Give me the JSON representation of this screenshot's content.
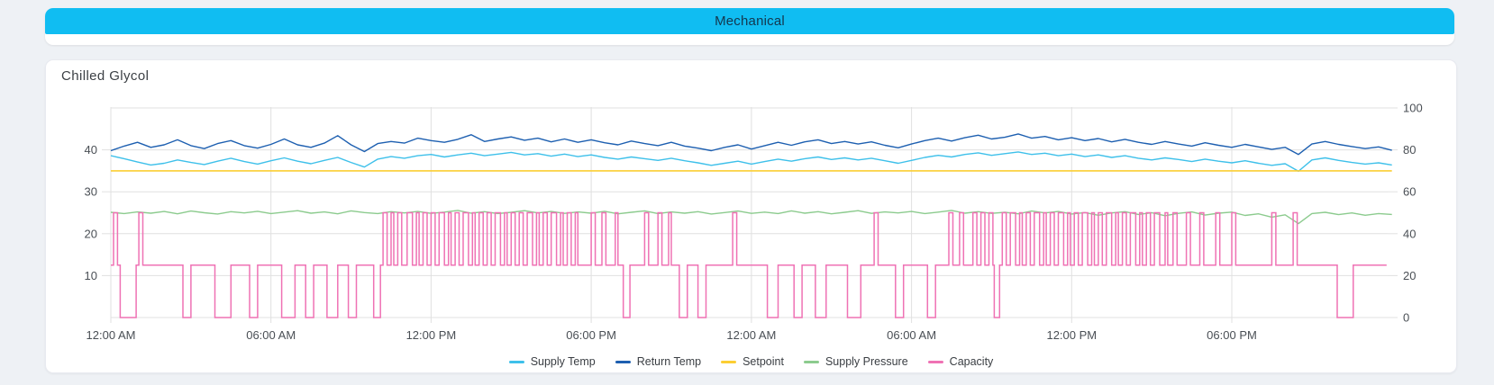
{
  "header": {
    "title": "Mechanical",
    "background": "#10bdf2",
    "text_color": "#14374e"
  },
  "panel": {
    "title": "Chilled Glycol"
  },
  "colors": {
    "grid": "#e0e0e0",
    "axis_text": "#4a4f55",
    "supply_temp": "#3ec0ea",
    "return_temp": "#1d5fb0",
    "setpoint": "#fcce33",
    "supply_pressure": "#8ccb8e",
    "capacity": "#ef72b4"
  },
  "chart_data": {
    "type": "line",
    "title": "Chilled Glycol",
    "xlabel": "",
    "ylabel": "",
    "time_span_hours": 48,
    "dt_hours": 0.5,
    "grid": true,
    "legend_position": "bottom-center",
    "x_ticks": [
      {
        "t": 0,
        "label": "12:00 AM"
      },
      {
        "t": 6,
        "label": "06:00 AM"
      },
      {
        "t": 12,
        "label": "12:00 PM"
      },
      {
        "t": 18,
        "label": "06:00 PM"
      },
      {
        "t": 24,
        "label": "12:00 AM"
      },
      {
        "t": 30,
        "label": "06:00 AM"
      },
      {
        "t": 36,
        "label": "12:00 PM"
      },
      {
        "t": 42,
        "label": "06:00 PM"
      }
    ],
    "left_axis": {
      "ticks": [
        10,
        20,
        30,
        40
      ],
      "range": [
        0,
        50.2
      ]
    },
    "right_axis": {
      "ticks": [
        0,
        20,
        40,
        60,
        80,
        100
      ],
      "range": [
        0,
        100.4
      ]
    },
    "series": [
      {
        "name": "Supply Temp",
        "color": "#3ec0ea",
        "axis": "left",
        "kind": "values",
        "values": [
          38.6,
          37.9,
          37.1,
          36.4,
          36.8,
          37.6,
          37.0,
          36.5,
          37.3,
          38.0,
          37.2,
          36.6,
          37.4,
          38.1,
          37.3,
          36.7,
          37.5,
          38.2,
          37.0,
          35.9,
          37.8,
          38.4,
          38.0,
          38.6,
          38.9,
          38.3,
          38.8,
          39.2,
          38.6,
          39.0,
          39.4,
          38.8,
          39.1,
          38.5,
          39.0,
          38.4,
          38.8,
          38.2,
          37.8,
          38.3,
          37.9,
          37.5,
          38.0,
          37.4,
          36.9,
          36.3,
          36.8,
          37.3,
          36.6,
          37.2,
          37.8,
          37.3,
          37.9,
          38.3,
          37.7,
          38.1,
          37.6,
          38.0,
          37.4,
          36.8,
          37.5,
          38.2,
          38.7,
          38.3,
          38.9,
          39.3,
          38.7,
          39.1,
          39.5,
          38.9,
          39.2,
          38.6,
          39.0,
          38.4,
          38.8,
          38.2,
          38.6,
          38.0,
          37.6,
          38.1,
          37.7,
          37.2,
          37.8,
          37.3,
          36.9,
          37.4,
          36.8,
          36.3,
          36.7,
          34.9,
          37.6,
          38.1,
          37.5,
          37.0,
          36.6,
          36.9,
          36.4
        ]
      },
      {
        "name": "Return Temp",
        "color": "#1d5fb0",
        "axis": "left",
        "kind": "values",
        "values": [
          39.8,
          40.9,
          41.8,
          40.6,
          41.2,
          42.4,
          41.0,
          40.3,
          41.5,
          42.2,
          41.0,
          40.4,
          41.3,
          42.6,
          41.2,
          40.6,
          41.6,
          43.4,
          41.2,
          39.6,
          41.5,
          42.0,
          41.6,
          42.8,
          42.2,
          41.8,
          42.5,
          43.6,
          42.0,
          42.6,
          43.1,
          42.3,
          42.8,
          41.9,
          42.6,
          41.8,
          42.4,
          41.7,
          41.2,
          42.1,
          41.5,
          41.0,
          41.8,
          40.9,
          40.4,
          39.8,
          40.6,
          41.2,
          40.2,
          41.0,
          41.8,
          41.1,
          41.9,
          42.4,
          41.5,
          42.0,
          41.4,
          41.9,
          41.1,
          40.5,
          41.4,
          42.2,
          42.8,
          42.1,
          42.9,
          43.5,
          42.6,
          43.0,
          43.8,
          42.8,
          43.2,
          42.4,
          42.9,
          42.2,
          42.7,
          41.9,
          42.5,
          41.8,
          41.3,
          42.0,
          41.4,
          40.9,
          41.7,
          41.1,
          40.6,
          41.3,
          40.7,
          40.1,
          40.6,
          38.9,
          41.4,
          42.0,
          41.3,
          40.8,
          40.3,
          40.7,
          39.9
        ]
      },
      {
        "name": "Setpoint",
        "color": "#fcce33",
        "axis": "left",
        "kind": "constant",
        "constant": 35
      },
      {
        "name": "Supply Pressure",
        "color": "#8ccb8e",
        "axis": "right",
        "kind": "values",
        "values": [
          50.2,
          49.6,
          50.4,
          49.8,
          50.6,
          49.5,
          50.8,
          50.0,
          49.4,
          50.5,
          49.9,
          50.7,
          49.6,
          50.3,
          51.0,
          49.8,
          50.4,
          49.5,
          50.9,
          50.1,
          49.6,
          50.5,
          49.9,
          50.6,
          49.7,
          50.3,
          51.1,
          49.8,
          50.5,
          49.6,
          50.2,
          51.0,
          49.9,
          50.6,
          49.7,
          50.4,
          49.8,
          50.7,
          49.5,
          50.2,
          50.9,
          49.6,
          50.4,
          49.8,
          50.5,
          49.4,
          50.1,
          50.8,
          49.7,
          50.3,
          49.6,
          50.9,
          49.8,
          50.5,
          49.5,
          50.2,
          51.0,
          49.7,
          50.4,
          49.9,
          50.6,
          49.6,
          50.3,
          51.1,
          49.8,
          50.5,
          49.7,
          50.2,
          49.5,
          50.8,
          49.9,
          50.6,
          49.4,
          50.1,
          48.8,
          49.9,
          50.5,
          49.2,
          50.0,
          48.6,
          49.7,
          50.4,
          48.9,
          49.8,
          50.3,
          48.7,
          49.5,
          47.9,
          49.0,
          44.8,
          49.6,
          50.2,
          49.1,
          49.9,
          48.8,
          49.6,
          49.2
        ]
      },
      {
        "name": "Capacity",
        "color": "#ef72b4",
        "axis": "right",
        "kind": "step",
        "baseline": 25,
        "t_end": 47.8,
        "excursions": [
          [
            0.1,
            0.25,
            50
          ],
          [
            0.35,
            0.95,
            0
          ],
          [
            1.05,
            1.2,
            50
          ],
          [
            2.7,
            3.0,
            0
          ],
          [
            3.9,
            4.5,
            0
          ],
          [
            5.2,
            5.5,
            0
          ],
          [
            6.4,
            6.9,
            0
          ],
          [
            7.3,
            7.6,
            0
          ],
          [
            8.1,
            8.5,
            0
          ],
          [
            8.9,
            9.2,
            0
          ],
          [
            9.85,
            10.1,
            0
          ],
          [
            10.2,
            10.35,
            50
          ],
          [
            10.5,
            10.6,
            50
          ],
          [
            10.75,
            10.9,
            50
          ],
          [
            11.1,
            11.3,
            50
          ],
          [
            11.45,
            11.55,
            50
          ],
          [
            11.7,
            11.85,
            50
          ],
          [
            12.0,
            12.15,
            50
          ],
          [
            12.3,
            12.5,
            50
          ],
          [
            12.65,
            12.75,
            50
          ],
          [
            12.9,
            13.05,
            50
          ],
          [
            13.2,
            13.4,
            50
          ],
          [
            13.55,
            13.65,
            50
          ],
          [
            13.8,
            13.95,
            50
          ],
          [
            14.1,
            14.25,
            50
          ],
          [
            14.4,
            14.6,
            50
          ],
          [
            14.75,
            14.85,
            50
          ],
          [
            15.0,
            15.15,
            50
          ],
          [
            15.3,
            15.45,
            50
          ],
          [
            15.6,
            15.8,
            50
          ],
          [
            15.95,
            16.05,
            50
          ],
          [
            16.2,
            16.35,
            50
          ],
          [
            16.5,
            16.7,
            50
          ],
          [
            16.85,
            16.95,
            50
          ],
          [
            17.1,
            17.25,
            50
          ],
          [
            17.4,
            17.5,
            50
          ],
          [
            18.0,
            18.15,
            50
          ],
          [
            18.4,
            18.55,
            50
          ],
          [
            18.9,
            19.0,
            50
          ],
          [
            19.2,
            19.45,
            0
          ],
          [
            20.0,
            20.15,
            50
          ],
          [
            20.5,
            20.65,
            50
          ],
          [
            20.9,
            21.0,
            50
          ],
          [
            21.3,
            21.6,
            0
          ],
          [
            22.0,
            22.3,
            0
          ],
          [
            23.3,
            23.45,
            50
          ],
          [
            24.6,
            25.0,
            0
          ],
          [
            25.6,
            25.9,
            0
          ],
          [
            26.4,
            26.8,
            0
          ],
          [
            27.6,
            28.1,
            0
          ],
          [
            28.6,
            28.75,
            50
          ],
          [
            29.4,
            29.7,
            0
          ],
          [
            30.6,
            30.9,
            0
          ],
          [
            31.4,
            31.55,
            50
          ],
          [
            31.8,
            31.95,
            50
          ],
          [
            32.3,
            32.45,
            50
          ],
          [
            32.6,
            32.75,
            50
          ],
          [
            32.9,
            33.05,
            50
          ],
          [
            33.1,
            33.3,
            0
          ],
          [
            33.4,
            33.55,
            50
          ],
          [
            33.7,
            33.9,
            50
          ],
          [
            34.05,
            34.15,
            50
          ],
          [
            34.3,
            34.45,
            50
          ],
          [
            34.6,
            34.8,
            50
          ],
          [
            34.95,
            35.05,
            50
          ],
          [
            35.2,
            35.35,
            50
          ],
          [
            35.5,
            35.7,
            50
          ],
          [
            35.85,
            35.95,
            50
          ],
          [
            36.1,
            36.25,
            50
          ],
          [
            36.4,
            36.6,
            50
          ],
          [
            36.75,
            36.85,
            50
          ],
          [
            37.0,
            37.15,
            50
          ],
          [
            37.3,
            37.5,
            50
          ],
          [
            37.65,
            37.75,
            50
          ],
          [
            37.9,
            38.05,
            50
          ],
          [
            38.2,
            38.4,
            50
          ],
          [
            38.55,
            38.65,
            50
          ],
          [
            38.8,
            38.95,
            50
          ],
          [
            39.1,
            39.3,
            50
          ],
          [
            39.5,
            39.6,
            50
          ],
          [
            39.8,
            39.95,
            50
          ],
          [
            40.3,
            40.45,
            50
          ],
          [
            40.8,
            40.95,
            50
          ],
          [
            41.4,
            41.55,
            50
          ],
          [
            42.0,
            42.15,
            50
          ],
          [
            43.5,
            43.65,
            50
          ],
          [
            44.3,
            44.45,
            50
          ],
          [
            45.95,
            46.55,
            0
          ]
        ]
      }
    ]
  }
}
